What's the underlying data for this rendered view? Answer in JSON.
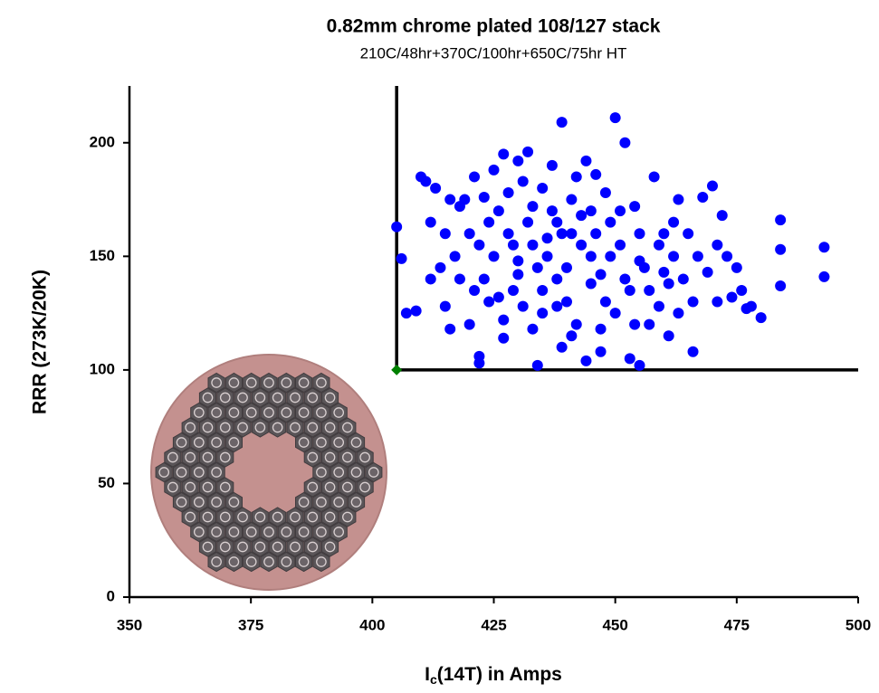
{
  "chart_data": {
    "type": "scatter",
    "title": "0.82mm chrome plated 108/127 stack",
    "subtitle": "210C/48hr+370C/100hr+650C/75hr HT",
    "y_label": "RRR (273K/20K)",
    "x_label": {
      "main": "I",
      "sub": "c",
      "rest": "(14T) in Amps"
    },
    "xlim": [
      350,
      500
    ],
    "xticks": [
      350,
      375,
      400,
      425,
      450,
      475,
      500
    ],
    "ylim": [
      0,
      225
    ],
    "yticks": [
      0,
      50,
      100,
      150,
      200
    ],
    "grid": false,
    "threshold": {
      "x": 405,
      "y": 100,
      "color": "#000000"
    },
    "series": [
      {
        "color": "#0000ff",
        "marker": "circle",
        "x": [
          405,
          406,
          407,
          409,
          410,
          411,
          412,
          413,
          414,
          415,
          416,
          417,
          418,
          419,
          420,
          420,
          421,
          422,
          422,
          423,
          424,
          425,
          425,
          426,
          427,
          428,
          429,
          430,
          430,
          431,
          432,
          433,
          433,
          434,
          435,
          435,
          436,
          437,
          438,
          438,
          439,
          439,
          440,
          441,
          442,
          442,
          443,
          444,
          445,
          446,
          446,
          447,
          448,
          449,
          450,
          450,
          451,
          452,
          452,
          453,
          454,
          455,
          455,
          456,
          457,
          458,
          459,
          460,
          461,
          462,
          463,
          464,
          465,
          466,
          467,
          468,
          469,
          470,
          471,
          472,
          473,
          475,
          476,
          478,
          480,
          484,
          484,
          484,
          493,
          493,
          418,
          422,
          424,
          426,
          428,
          430,
          432,
          434,
          436,
          438,
          440,
          441,
          443,
          445,
          447,
          449,
          451,
          453,
          455,
          457,
          459,
          461,
          463,
          415,
          412,
          427,
          431,
          437,
          444,
          448,
          454,
          460,
          466,
          471,
          474,
          477,
          462,
          427,
          433,
          439,
          416,
          421,
          429,
          435,
          441,
          447,
          423,
          445
        ],
        "values": [
          163,
          149,
          125,
          126,
          185,
          183,
          165,
          180,
          145,
          128,
          118,
          150,
          172,
          175,
          120,
          160,
          185,
          103,
          106,
          140,
          165,
          188,
          150,
          132,
          114,
          178,
          155,
          192,
          142,
          128,
          196,
          172,
          155,
          102,
          180,
          135,
          150,
          190,
          165,
          128,
          209,
          110,
          145,
          175,
          185,
          120,
          155,
          104,
          138,
          186,
          160,
          108,
          130,
          150,
          211,
          125,
          170,
          200,
          140,
          105,
          120,
          102,
          160,
          145,
          135,
          185,
          128,
          143,
          115,
          165,
          175,
          140,
          160,
          108,
          150,
          176,
          143,
          181,
          130,
          168,
          150,
          145,
          135,
          128,
          123,
          166,
          153,
          137,
          154,
          141,
          140,
          155,
          130,
          170,
          160,
          148,
          165,
          145,
          158,
          140,
          130,
          160,
          168,
          150,
          142,
          165,
          155,
          135,
          148,
          120,
          155,
          138,
          125,
          160,
          140,
          195,
          183,
          170,
          192,
          178,
          172,
          160,
          130,
          155,
          132,
          127,
          150,
          122,
          118,
          160,
          175,
          135,
          135,
          125,
          115,
          118,
          176,
          170
        ]
      },
      {
        "color": "#008000",
        "marker": "diamond",
        "x": [
          405
        ],
        "values": [
          100
        ]
      }
    ]
  }
}
